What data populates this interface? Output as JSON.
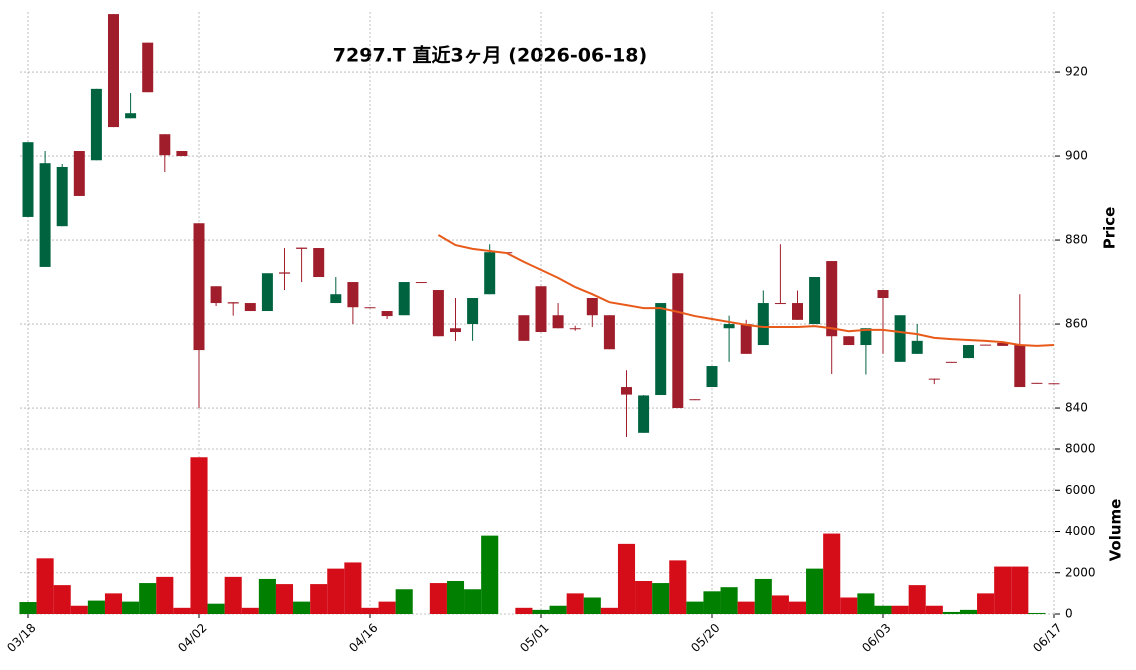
{
  "chart_data": {
    "type": "candlestick",
    "title": "7297.T  直近3ヶ月  (2026-06-18)",
    "categories": [
      "03/18",
      null,
      null,
      null,
      null,
      null,
      null,
      null,
      null,
      null,
      "04/02",
      null,
      null,
      null,
      null,
      null,
      null,
      null,
      null,
      null,
      "04/16",
      null,
      null,
      null,
      null,
      null,
      null,
      null,
      null,
      null,
      "05/01",
      null,
      null,
      null,
      null,
      null,
      null,
      null,
      null,
      null,
      "05/20",
      null,
      null,
      null,
      null,
      null,
      null,
      null,
      null,
      null,
      "06/03",
      null,
      null,
      null,
      null,
      null,
      null,
      null,
      null,
      null,
      "06/17"
    ],
    "open": [
      885.5,
      873.6,
      883.3,
      901.2,
      899.0,
      933.8,
      909.0,
      927.0,
      905.2,
      901.2,
      884.0,
      869.0,
      865.2,
      865.0,
      863.1,
      872.3,
      878.2,
      878.1,
      865.0,
      870.0,
      864.0,
      863.1,
      862.1,
      870.0,
      868.1,
      859.0,
      860.0,
      867.1,
      877.1,
      862.1,
      869.0,
      862.1,
      859.0,
      866.2,
      862.1,
      845.0,
      834.1,
      843.1,
      872.1,
      842.1,
      845.0,
      859.0,
      860.0,
      855.0,
      865.0,
      865.0,
      860.0,
      875.0,
      857.1,
      855.0,
      868.1,
      851.0,
      852.9,
      847.0,
      851.0,
      851.9,
      855.1,
      855.5,
      855.0,
      846.0,
      845.9
    ],
    "high": [
      903.3,
      901.2,
      898.1,
      901.2,
      916.0,
      933.8,
      915.0,
      927.0,
      905.2,
      901.2,
      884.0,
      869.0,
      865.2,
      865.0,
      872.1,
      878.1,
      878.2,
      878.1,
      871.2,
      870.0,
      864.0,
      863.1,
      870.0,
      870.0,
      868.1,
      866.2,
      866.2,
      879.0,
      877.1,
      862.1,
      869.0,
      865.0,
      859.6,
      866.2,
      862.1,
      849.0,
      843.1,
      865.0,
      872.1,
      842.1,
      850.0,
      862.0,
      861.0,
      868.0,
      879.0,
      868.0,
      871.2,
      875.0,
      857.1,
      859.0,
      868.1,
      862.1,
      860.0,
      847.0,
      851.0,
      855.0,
      855.1,
      855.5,
      867.1,
      846.0,
      845.9
    ],
    "low": [
      885.5,
      873.6,
      883.3,
      890.5,
      899.0,
      906.9,
      909.0,
      915.2,
      896.2,
      900.2,
      840.0,
      864.3,
      862.0,
      863.1,
      863.1,
      868.1,
      870.0,
      871.2,
      865.0,
      860.0,
      863.8,
      861.2,
      862.1,
      869.9,
      857.1,
      856.0,
      856.0,
      867.1,
      876.9,
      856.0,
      858.1,
      859.0,
      858.4,
      859.3,
      854.0,
      833.1,
      834.1,
      843.1,
      840.0,
      841.9,
      845.0,
      851.0,
      852.9,
      855.0,
      864.9,
      861.0,
      860.0,
      848.1,
      855.0,
      848.0,
      852.9,
      851.0,
      852.9,
      845.7,
      850.9,
      851.9,
      854.9,
      854.8,
      845.0,
      845.9,
      845.8
    ],
    "close": [
      903.3,
      898.3,
      897.4,
      890.5,
      916.0,
      906.9,
      910.2,
      915.2,
      900.2,
      900.0,
      853.8,
      865.0,
      864.9,
      863.1,
      872.1,
      872.0,
      877.9,
      871.2,
      867.1,
      864.0,
      863.8,
      861.9,
      870.0,
      869.9,
      857.1,
      858.1,
      866.2,
      877.1,
      876.9,
      856.0,
      858.1,
      859.0,
      858.8,
      862.1,
      854.0,
      843.2,
      843.0,
      865.0,
      840.0,
      841.9,
      850.0,
      860.0,
      852.9,
      865.0,
      864.9,
      861.0,
      871.2,
      857.1,
      855.0,
      859.0,
      866.2,
      862.1,
      856.0,
      846.9,
      850.9,
      855.0,
      854.9,
      854.8,
      845.0,
      845.9,
      845.8
    ],
    "volume": [
      580,
      2700,
      1400,
      400,
      650,
      1000,
      600,
      1500,
      1800,
      300,
      7600,
      500,
      1800,
      300,
      1700,
      1450,
      600,
      1450,
      2200,
      2500,
      300,
      600,
      1200,
      0,
      1500,
      1600,
      1200,
      3800,
      0,
      300,
      200,
      400,
      1000,
      800,
      300,
      3400,
      1600,
      1500,
      2600,
      600,
      1100,
      1300,
      600,
      1700,
      900,
      600,
      2200,
      3900,
      800,
      1000,
      400,
      400,
      1400,
      400,
      100,
      200,
      1000,
      2300,
      2300,
      50,
      0
    ],
    "ma": [
      null,
      null,
      null,
      null,
      null,
      null,
      null,
      null,
      null,
      null,
      null,
      null,
      null,
      null,
      null,
      null,
      null,
      null,
      null,
      null,
      null,
      null,
      null,
      null,
      881.2,
      878.8,
      877.9,
      877.4,
      876.9,
      874.8,
      872.9,
      871.0,
      868.8,
      867.1,
      865.2,
      864.5,
      863.8,
      863.8,
      862.9,
      861.9,
      861.2,
      860.5,
      859.8,
      859.3,
      859.3,
      859.3,
      859.5,
      859.0,
      858.3,
      858.6,
      858.6,
      858.1,
      857.6,
      856.7,
      856.4,
      856.2,
      856.0,
      855.7,
      855.0,
      854.8,
      855.0
    ],
    "up_color": "#006340",
    "down_color": "#a01e2b",
    "volume_up_color": "#007f00",
    "volume_down_color": "#d50d18",
    "ma_color": "#e85a1a",
    "ylim": [
      831.2,
      934.3
    ],
    "yticks": [
      840,
      860,
      880,
      900,
      920
    ],
    "ylabel": "Price",
    "y2lim": [
      0,
      8000
    ],
    "y2ticks": [
      0,
      2000,
      4000,
      6000,
      8000
    ],
    "y2label": "Volume",
    "grid": true
  }
}
